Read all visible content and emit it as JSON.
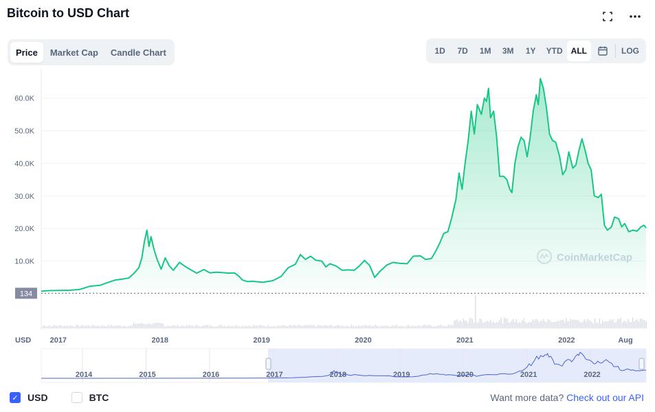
{
  "title": "Bitcoin to USD Chart",
  "icons": {
    "fullscreen": "fullscreen-icon",
    "more": "more-icon",
    "calendar": "calendar-icon"
  },
  "tabs": [
    {
      "label": "Price",
      "active": true
    },
    {
      "label": "Market Cap",
      "active": false
    },
    {
      "label": "Candle Chart",
      "active": false
    }
  ],
  "ranges": [
    {
      "label": "1D",
      "active": false
    },
    {
      "label": "7D",
      "active": false
    },
    {
      "label": "1M",
      "active": false
    },
    {
      "label": "3M",
      "active": false
    },
    {
      "label": "1Y",
      "active": false
    },
    {
      "label": "YTD",
      "active": false
    },
    {
      "label": "ALL",
      "active": true
    }
  ],
  "log_label": "LOG",
  "watermark": "CoinMarketCap",
  "legend": [
    {
      "label": "USD",
      "checked": true
    },
    {
      "label": "BTC",
      "checked": false
    }
  ],
  "api": {
    "text": "Want more data?",
    "link": "Check out our API"
  },
  "colors": {
    "line": "#16c784",
    "fill": "#16c784",
    "accent": "#3861fb",
    "navigator_line": "#4a63d4"
  },
  "chart_data": {
    "type": "area",
    "title": "",
    "xlabel": "",
    "ylabel": "USD",
    "ylim": [
      -9500,
      69000
    ],
    "xlim": [
      2016.92,
      2022.87
    ],
    "y_ticks": [
      10000,
      20000,
      30000,
      40000,
      50000,
      60000
    ],
    "y_tick_labels": [
      "10.0K",
      "20.0K",
      "30.0K",
      "40.0K",
      "50.0K",
      "60.0K"
    ],
    "x_ticks": [
      {
        "t": 2017.0,
        "label": "2017"
      },
      {
        "t": 2018.0,
        "label": "2018"
      },
      {
        "t": 2019.0,
        "label": "2019"
      },
      {
        "t": 2020.0,
        "label": "2020"
      },
      {
        "t": 2021.0,
        "label": "2021"
      },
      {
        "t": 2022.0,
        "label": "2022"
      },
      {
        "t": 2022.6,
        "label": "Aug"
      }
    ],
    "baseline": {
      "value": 134,
      "label": "134"
    },
    "grid": true,
    "series": [
      {
        "name": "USD",
        "points": [
          [
            2016.92,
            750
          ],
          [
            2017.0,
            950
          ],
          [
            2017.1,
            1000
          ],
          [
            2017.2,
            1050
          ],
          [
            2017.3,
            1300
          ],
          [
            2017.4,
            2300
          ],
          [
            2017.5,
            2600
          ],
          [
            2017.58,
            3500
          ],
          [
            2017.65,
            4200
          ],
          [
            2017.72,
            4500
          ],
          [
            2017.78,
            4800
          ],
          [
            2017.84,
            6500
          ],
          [
            2017.88,
            8000
          ],
          [
            2017.91,
            11000
          ],
          [
            2017.935,
            16000
          ],
          [
            2017.96,
            19500
          ],
          [
            2017.98,
            14500
          ],
          [
            2018.0,
            17500
          ],
          [
            2018.03,
            13500
          ],
          [
            2018.06,
            10500
          ],
          [
            2018.1,
            7500
          ],
          [
            2018.14,
            11000
          ],
          [
            2018.18,
            8500
          ],
          [
            2018.22,
            7200
          ],
          [
            2018.28,
            9600
          ],
          [
            2018.33,
            8500
          ],
          [
            2018.38,
            7500
          ],
          [
            2018.45,
            6300
          ],
          [
            2018.52,
            7400
          ],
          [
            2018.58,
            6400
          ],
          [
            2018.64,
            6600
          ],
          [
            2018.7,
            6500
          ],
          [
            2018.76,
            6300
          ],
          [
            2018.82,
            6400
          ],
          [
            2018.86,
            5500
          ],
          [
            2018.9,
            4200
          ],
          [
            2018.95,
            3700
          ],
          [
            2019.0,
            3800
          ],
          [
            2019.1,
            3500
          ],
          [
            2019.2,
            4000
          ],
          [
            2019.28,
            5300
          ],
          [
            2019.35,
            8000
          ],
          [
            2019.42,
            9000
          ],
          [
            2019.47,
            12000
          ],
          [
            2019.52,
            10500
          ],
          [
            2019.57,
            11500
          ],
          [
            2019.62,
            10300
          ],
          [
            2019.68,
            10000
          ],
          [
            2019.72,
            8200
          ],
          [
            2019.76,
            9200
          ],
          [
            2019.82,
            8500
          ],
          [
            2019.88,
            7200
          ],
          [
            2019.94,
            7300
          ],
          [
            2020.0,
            7200
          ],
          [
            2020.05,
            8500
          ],
          [
            2020.1,
            10200
          ],
          [
            2020.15,
            8700
          ],
          [
            2020.2,
            5000
          ],
          [
            2020.25,
            6800
          ],
          [
            2020.32,
            8800
          ],
          [
            2020.38,
            9600
          ],
          [
            2020.45,
            9300
          ],
          [
            2020.52,
            9200
          ],
          [
            2020.58,
            11500
          ],
          [
            2020.65,
            11600
          ],
          [
            2020.7,
            10500
          ],
          [
            2020.76,
            10800
          ],
          [
            2020.8,
            13000
          ],
          [
            2020.84,
            15500
          ],
          [
            2020.88,
            18500
          ],
          [
            2020.92,
            19000
          ],
          [
            2020.96,
            23500
          ],
          [
            2021.0,
            29000
          ],
          [
            2021.03,
            37000
          ],
          [
            2021.06,
            32000
          ],
          [
            2021.09,
            40000
          ],
          [
            2021.12,
            47000
          ],
          [
            2021.15,
            56000
          ],
          [
            2021.18,
            49000
          ],
          [
            2021.21,
            58000
          ],
          [
            2021.25,
            55000
          ],
          [
            2021.28,
            60000
          ],
          [
            2021.3,
            59000
          ],
          [
            2021.32,
            63000
          ],
          [
            2021.34,
            54000
          ],
          [
            2021.37,
            56000
          ],
          [
            2021.4,
            48000
          ],
          [
            2021.43,
            36000
          ],
          [
            2021.47,
            36000
          ],
          [
            2021.5,
            35000
          ],
          [
            2021.53,
            32000
          ],
          [
            2021.55,
            31000
          ],
          [
            2021.58,
            40000
          ],
          [
            2021.61,
            45000
          ],
          [
            2021.64,
            48000
          ],
          [
            2021.67,
            47000
          ],
          [
            2021.7,
            42000
          ],
          [
            2021.73,
            48000
          ],
          [
            2021.76,
            56000
          ],
          [
            2021.79,
            61000
          ],
          [
            2021.81,
            58000
          ],
          [
            2021.83,
            66000
          ],
          [
            2021.86,
            63000
          ],
          [
            2021.89,
            57000
          ],
          [
            2021.92,
            49000
          ],
          [
            2021.95,
            47000
          ],
          [
            2021.98,
            46500
          ],
          [
            2022.02,
            42000
          ],
          [
            2022.05,
            36500
          ],
          [
            2022.08,
            38000
          ],
          [
            2022.11,
            43500
          ],
          [
            2022.15,
            38500
          ],
          [
            2022.18,
            39500
          ],
          [
            2022.21,
            44000
          ],
          [
            2022.24,
            47500
          ],
          [
            2022.27,
            44000
          ],
          [
            2022.3,
            40000
          ],
          [
            2022.33,
            38000
          ],
          [
            2022.36,
            30000
          ],
          [
            2022.4,
            29500
          ],
          [
            2022.43,
            30500
          ],
          [
            2022.46,
            21000
          ],
          [
            2022.49,
            19500
          ],
          [
            2022.53,
            20500
          ],
          [
            2022.56,
            23500
          ],
          [
            2022.6,
            23000
          ],
          [
            2022.63,
            20500
          ],
          [
            2022.66,
            21500
          ],
          [
            2022.7,
            19000
          ],
          [
            2022.74,
            19500
          ],
          [
            2022.78,
            19200
          ],
          [
            2022.82,
            20500
          ],
          [
            2022.85,
            21000
          ],
          [
            2022.87,
            20200
          ]
        ]
      }
    ],
    "navigator": {
      "x_ticks": [
        {
          "t": 2014.0,
          "label": "2014"
        },
        {
          "t": 2015.0,
          "label": "2015"
        },
        {
          "t": 2016.0,
          "label": "2016"
        },
        {
          "t": 2017.0,
          "label": "2017"
        },
        {
          "t": 2018.0,
          "label": "2018"
        },
        {
          "t": 2019.0,
          "label": "2019"
        },
        {
          "t": 2020.0,
          "label": "2020"
        },
        {
          "t": 2021.0,
          "label": "2021"
        },
        {
          "t": 2022.0,
          "label": "2022"
        }
      ],
      "xlim": [
        2013.35,
        2022.87
      ],
      "selection": [
        2016.92,
        2022.87
      ]
    }
  }
}
